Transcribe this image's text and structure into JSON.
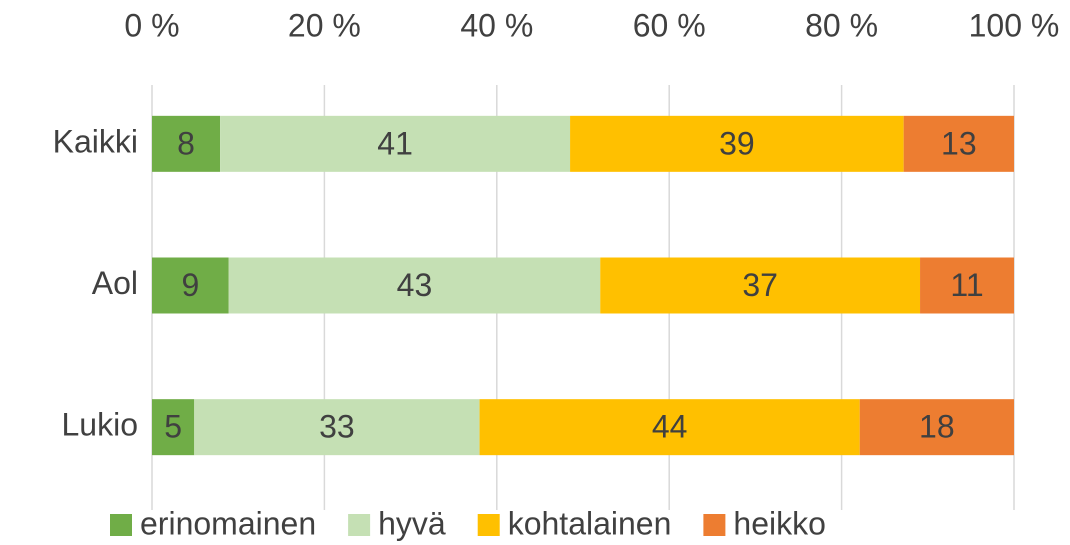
{
  "chart_data": {
    "type": "bar",
    "orientation": "horizontal",
    "stacked": true,
    "categories": [
      "Kaikki",
      "Aol",
      "Lukio"
    ],
    "series": [
      {
        "name": "erinomainen",
        "color": "#70ad47",
        "values": [
          7.9,
          8.9,
          4.9
        ],
        "value_labels": [
          "8",
          "9",
          "5"
        ]
      },
      {
        "name": "hyvä",
        "color": "#c5e0b4",
        "values": [
          40.6,
          43.1,
          33.1
        ],
        "value_labels": [
          "41",
          "43",
          "33"
        ]
      },
      {
        "name": "kohtalainen",
        "color": "#ffc000",
        "values": [
          38.7,
          37.1,
          44.1
        ],
        "value_labels": [
          "39",
          "37",
          "44"
        ]
      },
      {
        "name": "heikko",
        "color": "#ed7d31",
        "values": [
          12.8,
          10.9,
          17.9
        ],
        "value_labels": [
          "13",
          "11",
          "18"
        ]
      }
    ],
    "xlim": [
      0,
      100
    ],
    "xticks": [
      {
        "value": 0,
        "label": "0 %"
      },
      {
        "value": 20,
        "label": "20 %"
      },
      {
        "value": 40,
        "label": "40 %"
      },
      {
        "value": 60,
        "label": "60 %"
      },
      {
        "value": 80,
        "label": "80 %"
      },
      {
        "value": 100,
        "label": "100 %"
      }
    ],
    "grid": true,
    "legend": "bottom"
  }
}
